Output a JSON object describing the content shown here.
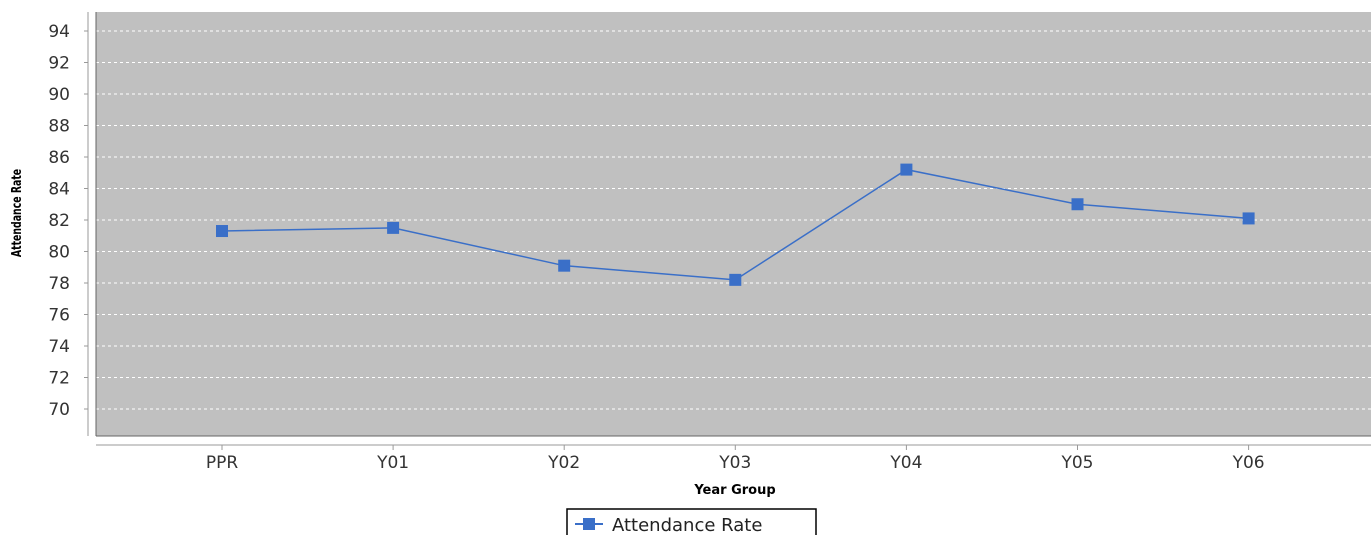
{
  "chart_data": {
    "type": "line",
    "title": "",
    "xlabel": "Year Group",
    "ylabel": "Attendance Rate",
    "categories": [
      "PPR",
      "Y01",
      "Y02",
      "Y03",
      "Y04",
      "Y05",
      "Y06"
    ],
    "series": [
      {
        "name": "Attendance Rate",
        "values": [
          81.3,
          81.5,
          79.1,
          78.2,
          85.2,
          83.0,
          82.1
        ],
        "color": "#3a6fc8"
      }
    ],
    "yticks": [
      70,
      72,
      74,
      76,
      78,
      80,
      82,
      84,
      86,
      88,
      90,
      92,
      94
    ],
    "grid": true,
    "legend_position": "bottom-center",
    "colors": {
      "plot_background": "#c0c0c0",
      "gridline": "#ffffff",
      "axis": "#888888"
    }
  }
}
